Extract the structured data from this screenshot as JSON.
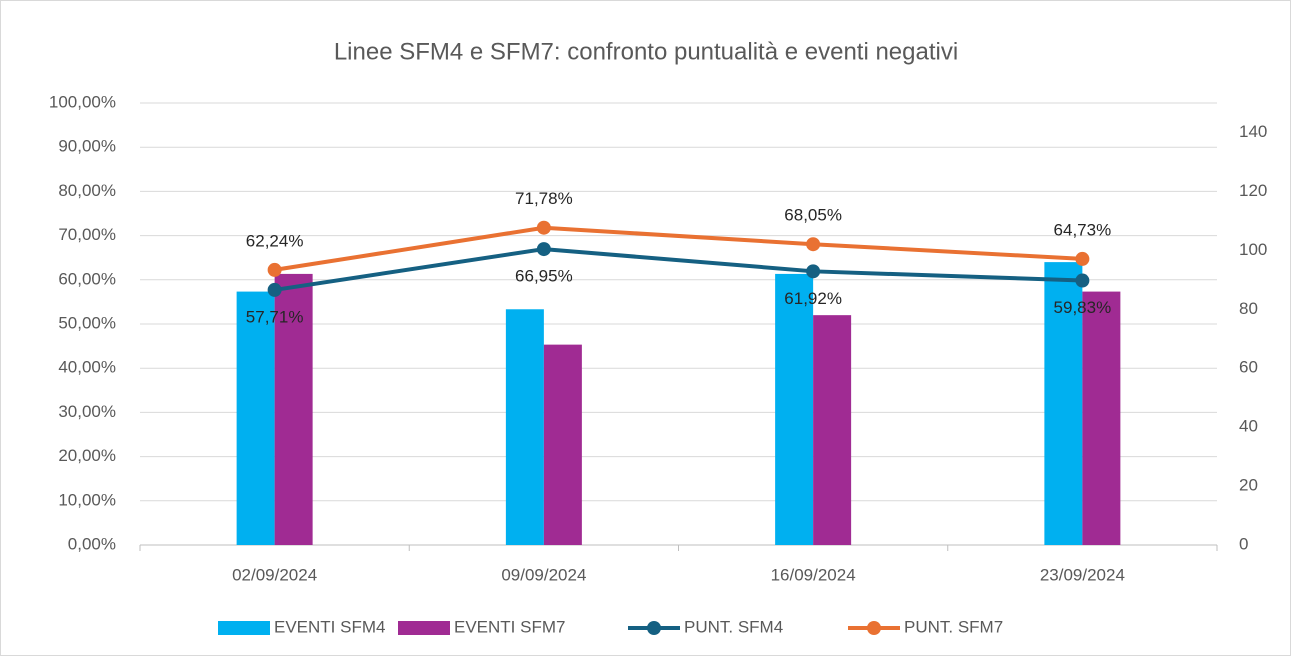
{
  "chart_data": {
    "type": "combo",
    "title": "Linee SFM4 e SFM7: confronto puntualità e eventi negativi",
    "categories": [
      "02/09/2024",
      "09/09/2024",
      "16/09/2024",
      "23/09/2024"
    ],
    "series": [
      {
        "name": "EVENTI SFM4",
        "type": "bar",
        "axis": "y2",
        "color": "#00b0f0",
        "values": [
          86,
          80,
          92,
          96
        ]
      },
      {
        "name": "EVENTI SFM7",
        "type": "bar",
        "axis": "y2",
        "color": "#a02b93",
        "values": [
          92,
          68,
          78,
          86
        ]
      },
      {
        "name": "PUNT. SFM4",
        "type": "line",
        "color": "#156082",
        "values": [
          57.71,
          66.95,
          61.92,
          59.83
        ],
        "value_labels": [
          "57,71%",
          "66,95%",
          "61,92%",
          "59,83%"
        ],
        "label_position": "below"
      },
      {
        "name": "PUNT. SFM7",
        "type": "line",
        "color": "#e97132",
        "values": [
          62.24,
          71.78,
          68.05,
          64.73
        ],
        "value_labels": [
          "62,24%",
          "71,78%",
          "68,05%",
          "64,73%"
        ],
        "label_position": "above"
      }
    ],
    "ylim": [
      0,
      100
    ],
    "yticks": [
      {
        "value": 0,
        "label": "0,00%"
      },
      {
        "value": 10,
        "label": "10,00%"
      },
      {
        "value": 20,
        "label": "20,00%"
      },
      {
        "value": 30,
        "label": "30,00%"
      },
      {
        "value": 40,
        "label": "40,00%"
      },
      {
        "value": 50,
        "label": "50,00%"
      },
      {
        "value": 60,
        "label": "60,00%"
      },
      {
        "value": 70,
        "label": "70,00%"
      },
      {
        "value": 80,
        "label": "80,00%"
      },
      {
        "value": 90,
        "label": "90,00%"
      },
      {
        "value": 100,
        "label": "100,00%"
      }
    ],
    "y2lim": [
      0,
      150
    ],
    "y2ticks": [
      0,
      20,
      40,
      60,
      80,
      100,
      120,
      140
    ],
    "grid": true,
    "legend": "bottom"
  }
}
